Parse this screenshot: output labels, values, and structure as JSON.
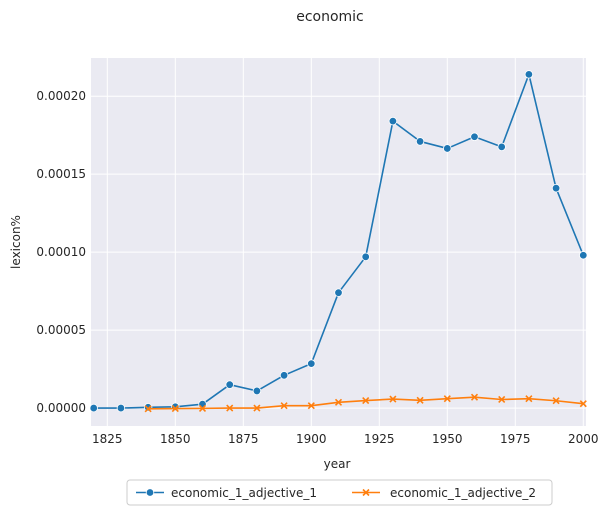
{
  "chart_data": {
    "type": "line",
    "title": "economic",
    "xlabel": "year",
    "ylabel": "lexicon%",
    "xlim": [
      1819,
      2001
    ],
    "ylim": [
      -1.15e-05,
      0.0002245
    ],
    "xticks": [
      1825,
      1850,
      1875,
      1900,
      1925,
      1950,
      1975,
      2000
    ],
    "xtick_labels": [
      "1825",
      "1850",
      "1875",
      "1900",
      "1925",
      "1950",
      "1975",
      "2000"
    ],
    "yticks": [
      0.0,
      5e-05,
      0.0001,
      0.00015,
      0.0002
    ],
    "ytick_labels": [
      "0.00000",
      "0.00005",
      "0.00010",
      "0.00015",
      "0.00020"
    ],
    "grid": true,
    "legend_position": "bottom-center",
    "series": [
      {
        "name": "economic_1_adjective_1",
        "color": "#1f77b4",
        "marker": "circle",
        "x": [
          1820,
          1830,
          1840,
          1850,
          1860,
          1870,
          1880,
          1890,
          1900,
          1910,
          1920,
          1930,
          1940,
          1950,
          1960,
          1970,
          1980,
          1990,
          2000
        ],
        "y": [
          0.0,
          0.0,
          5e-07,
          8e-07,
          2.5e-06,
          1.5e-05,
          1.1e-05,
          2.1e-05,
          2.85e-05,
          7.4e-05,
          9.7e-05,
          0.000184,
          0.000171,
          0.0001665,
          0.000174,
          0.0001675,
          0.000214,
          0.000141,
          9.8e-05
        ]
      },
      {
        "name": "economic_1_adjective_2",
        "color": "#ff7f0e",
        "marker": "x",
        "x": [
          1840,
          1850,
          1860,
          1870,
          1880,
          1890,
          1900,
          1910,
          1920,
          1930,
          1940,
          1950,
          1960,
          1970,
          1980,
          1990,
          2000
        ],
        "y": [
          -5e-07,
          -3e-07,
          -2e-07,
          0.0,
          0.0,
          1.5e-06,
          1.5e-06,
          3.7e-06,
          4.8e-06,
          5.8e-06,
          5e-06,
          6e-06,
          7e-06,
          5.5e-06,
          6e-06,
          4.7e-06,
          2.8e-06
        ]
      }
    ]
  }
}
